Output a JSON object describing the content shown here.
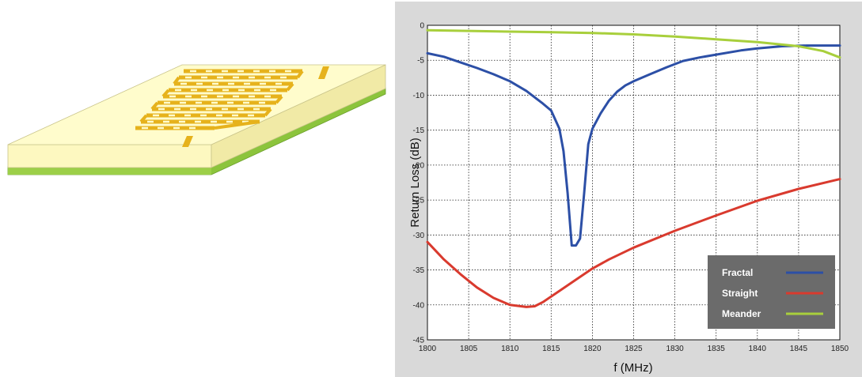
{
  "figure": {
    "antenna_icon": "meander-fractal-patch-antenna-illustration",
    "colors": {
      "substrate_top": "#fffcc4",
      "substrate_side": "#f5f0b4",
      "ground_layer": "#8cc43c",
      "patch": "#e8b61e",
      "plot_background": "#d9d9d9"
    }
  },
  "chart_data": {
    "type": "line",
    "xlabel": "f (MHz)",
    "ylabel": "Return  Loss (dB)",
    "xlim": [
      1800,
      1850
    ],
    "ylim": [
      -45,
      0
    ],
    "x_ticks": [
      1800,
      1805,
      1810,
      1815,
      1820,
      1825,
      1830,
      1835,
      1840,
      1845,
      1850
    ],
    "x_tick_labels": [
      "1800",
      "1805",
      "1810",
      "1815",
      "1820",
      "1825",
      "1830",
      "1835",
      "1840",
      "1845",
      "1850"
    ],
    "y_ticks": [
      0,
      -5,
      -10,
      -15,
      -20,
      -25,
      -30,
      -35,
      -40,
      -45
    ],
    "y_tick_labels": [
      "0",
      "-5",
      "-10",
      "-15",
      "-20",
      "-25",
      "-30",
      "-35",
      "-40",
      "-45"
    ],
    "grid": true,
    "legend_position": "bottom-right",
    "series": [
      {
        "name": "Fractal",
        "color": "#2c4fa6",
        "x": [
          1800,
          1802,
          1804,
          1806,
          1808,
          1810,
          1812,
          1814,
          1815,
          1816,
          1816.5,
          1817,
          1817.5,
          1818,
          1818.5,
          1819,
          1819.5,
          1820,
          1821,
          1822,
          1823,
          1824,
          1825,
          1827,
          1829,
          1831,
          1833,
          1835,
          1838,
          1840,
          1843,
          1846,
          1850
        ],
        "y": [
          -4,
          -4.5,
          -5.3,
          -6.1,
          -7,
          -8,
          -9.4,
          -11.2,
          -12.2,
          -14.8,
          -18,
          -24,
          -31.5,
          -31.5,
          -30.5,
          -24,
          -17,
          -14.8,
          -12.6,
          -10.8,
          -9.5,
          -8.6,
          -8,
          -7,
          -6,
          -5.1,
          -4.6,
          -4.2,
          -3.6,
          -3.3,
          -3,
          -2.9,
          -2.9
        ]
      },
      {
        "name": "Straight",
        "color": "#d93a2e",
        "x": [
          1800,
          1802,
          1804,
          1806,
          1808,
          1810,
          1812,
          1813,
          1814,
          1816,
          1818,
          1820,
          1822,
          1825,
          1830,
          1835,
          1840,
          1845,
          1850
        ],
        "y": [
          -31,
          -33.5,
          -35.6,
          -37.5,
          -39,
          -40,
          -40.3,
          -40.2,
          -39.6,
          -38,
          -36.4,
          -34.8,
          -33.5,
          -31.8,
          -29.4,
          -27.2,
          -25.1,
          -23.4,
          -22
        ]
      },
      {
        "name": "Meander",
        "color": "#a8cf3c",
        "x": [
          1800,
          1805,
          1810,
          1815,
          1820,
          1825,
          1830,
          1835,
          1840,
          1845,
          1848,
          1850
        ],
        "y": [
          -0.7,
          -0.8,
          -0.9,
          -1,
          -1.1,
          -1.3,
          -1.6,
          -2,
          -2.4,
          -3,
          -3.7,
          -4.6
        ]
      }
    ]
  }
}
